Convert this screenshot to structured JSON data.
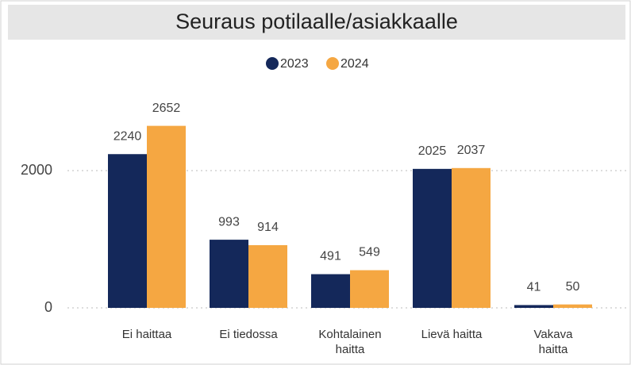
{
  "chart_data": {
    "type": "bar",
    "title": "Seuraus potilaalle/asiakkaalle",
    "categories": [
      "Ei haittaa",
      "Ei tiedossa",
      "Kohtalainen haitta",
      "Lievä haitta",
      "Vakava haitta"
    ],
    "series": [
      {
        "name": "2023",
        "color": "#14285a",
        "values": [
          2240,
          993,
          491,
          2025,
          41
        ]
      },
      {
        "name": "2024",
        "color": "#f5a742",
        "values": [
          2652,
          914,
          549,
          2037,
          50
        ]
      }
    ],
    "ylim": [
      0,
      3000
    ],
    "yticks": [
      0,
      2000
    ],
    "grid": true,
    "legend": "top"
  }
}
